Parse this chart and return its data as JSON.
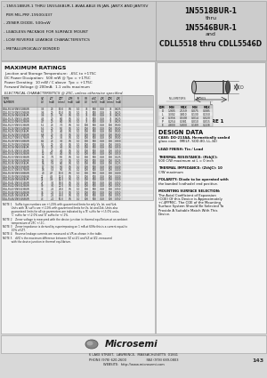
{
  "bg_color": "#d8d8d8",
  "header_bg": "#cccccc",
  "content_bg": "#f0f0f0",
  "title_right_lines": [
    "1N5518BUR-1",
    "thru",
    "1N5546BUR-1",
    "and",
    "CDLL5518 thru CDLL5546D"
  ],
  "bullet_lines": [
    "- 1N5518BUR-1 THRU 1N5546BUR-1 AVAILABLE IN JAN, JANTX AND JANTXV",
    "  PER MIL-PRF-19500/437",
    "- ZENER DIODE, 500mW",
    "- LEADLESS PACKAGE FOR SURFACE MOUNT",
    "- LOW REVERSE LEAKAGE CHARACTERISTICS",
    "- METALLURGICALLY BONDED"
  ],
  "max_ratings_title": "MAXIMUM RATINGS",
  "max_ratings_lines": [
    "Junction and Storage Temperature:  -65C to +175C",
    "DC Power Dissipation:  500 mW @ Tpc = +175C",
    "Power Derating:  10 mW / C above  Tpc = +175C",
    "Forward Voltage @ 200mA:  1.1 volts maximum"
  ],
  "elec_char_title": "ELECTRICAL CHARACTERISTICS @ 25C, unless otherwise specified.",
  "figure_title": "FIGURE 1",
  "design_data_title": "DESIGN DATA",
  "design_data_lines": [
    "CASE: DO-213AA, Hermetically sealed",
    "glass case.  (MELF, SOD-80, LL-34)",
    "",
    "LEAD FINISH: Tin / Lead",
    "",
    "THERMAL RESISTANCE: (RthJC):",
    "500 C/W maximum at L = 0 inch",
    "",
    "THERMAL IMPEDANCE: (ZthJC): 10",
    "C/W maximum",
    "",
    "POLARITY: Diode to be operated with",
    "the banded (cathode) end positive.",
    "",
    "MOUNTING SURFACE SELECTION:",
    "The Axial Coefficient of Expansion",
    "(COE) Of this Device is Approximately",
    "+/-4PPM/C. The COE of the Mounting",
    "Surface System Should Be Selected To",
    "Provide A Suitable Match With This",
    "Device."
  ],
  "notes": [
    "NOTE 1    Suffix type numbers are +/-20% with guaranteed limits for only Vz, Izt, and Vzk.",
    "           Units with 'A' suffix are +/-10% with guaranteed limits for Vz, Izt and Zzk. Units also",
    "           guaranteed limits for all six parameters are indicated by a 'B' suffix for +/-5.0% units,",
    "           'C' suffix for +/-2.0% and 'D' suffix for +/-1%.",
    "NOTE 2    Zener voltage is measured with the device junction in thermal equilibrium at an ambient",
    "           temperature of 25C +/-1C.",
    "NOTE 3    Zener impedance is derived by superimposing on 1 mA at 60Hz this is a current equal to",
    "           10% of IZT.",
    "NOTE 4    Reverse leakage currents are measured at VR as shown in the table.",
    "NOTE 5    dVZ is the maximum difference between VZ at IZ1 and VZ at IZ2, measured",
    "           with the device junction in thermal equilibrium."
  ],
  "footer_lines": [
    "6 LAKE STREET,  LAWRENCE,  MASSACHUSETTS  01841",
    "PHONE (978) 620-2600                    FAX (978) 689-0803",
    "WEBSITE:  http://www.microsemi.com"
  ],
  "page_number": "143",
  "table_rows": [
    [
      "CDLL5518/1N5518BUR",
      "3.3",
      "20",
      "10.0",
      "0.5",
      "1.0",
      "75",
      "500",
      "0.18",
      "75",
      "0.625"
    ],
    [
      "CDLL5519/1N5519BUR",
      "3.6",
      "20",
      "10.0",
      "0.5",
      "1.0",
      "75",
      "500",
      "0.18",
      "75",
      "0.625"
    ],
    [
      "CDLL5520/1N5520BUR",
      "3.9",
      "20",
      "9.0",
      "0.5",
      "1.0",
      "75",
      "500",
      "0.18",
      "75",
      "0.625"
    ],
    [
      "CDLL5521/1N5521BUR",
      "4.3",
      "20",
      "8.0",
      "0.5",
      "1.0",
      "75",
      "500",
      "0.18",
      "75",
      "0.625"
    ],
    [
      "CDLL5522/1N5522BUR",
      "4.7",
      "20",
      "8.0",
      "0.5",
      "1.0",
      "75",
      "500",
      "0.18",
      "75",
      "0.625"
    ],
    [
      "CDLL5523/1N5523BUR",
      "5.1",
      "20",
      "7.0",
      "0.5",
      "1.0",
      "100",
      "500",
      "0.18",
      "100",
      "0.500"
    ],
    [
      "CDLL5524/1N5524BUR",
      "5.6",
      "20",
      "5.0",
      "0.5",
      "1.0",
      "100",
      "500",
      "0.18",
      "100",
      "0.500"
    ],
    [
      "CDLL5525/1N5525BUR",
      "6.2",
      "20",
      "4.0",
      "0.5",
      "1.0",
      "100",
      "500",
      "0.18",
      "100",
      "0.500"
    ],
    [
      "CDLL5526/1N5526BUR",
      "6.8",
      "20",
      "3.5",
      "0.5",
      "1.0",
      "100",
      "500",
      "0.18",
      "100",
      "0.500"
    ],
    [
      "CDLL5527/1N5527BUR",
      "7.5",
      "20",
      "3.5",
      "0.5",
      "1.0",
      "100",
      "500",
      "0.18",
      "100",
      "0.500"
    ],
    [
      "CDLL5528/1N5528BUR",
      "8.2",
      "20",
      "3.0",
      "0.5",
      "1.0",
      "100",
      "500",
      "0.18",
      "100",
      "0.300"
    ],
    [
      "CDLL5529/1N5529BUR",
      "9.1",
      "20",
      "3.0",
      "0.5",
      "1.0",
      "100",
      "500",
      "0.18",
      "100",
      "0.300"
    ],
    [
      "CDLL5530/1N5530BUR",
      "10",
      "20",
      "3.0",
      "0.5",
      "1.0",
      "100",
      "500",
      "0.18",
      "100",
      "0.250"
    ],
    [
      "CDLL5531/1N5531BUR",
      "11",
      "20",
      "4.0",
      "0.5",
      "1.0",
      "100",
      "500",
      "0.18",
      "100",
      "0.250"
    ],
    [
      "CDLL5532/1N5532BUR",
      "12",
      "9.5",
      "4.0",
      "0.5",
      "1.0",
      "100",
      "500",
      "0.18",
      "100",
      "0.250"
    ],
    [
      "CDLL5533/1N5533BUR",
      "13",
      "7.5",
      "5.0",
      "0.5",
      "1.0",
      "100",
      "500",
      "0.18",
      "100",
      "0.125"
    ],
    [
      "CDLL5534/1N5534BUR",
      "15",
      "6.5",
      "7.0",
      "0.5",
      "1.0",
      "100",
      "500",
      "0.18",
      "100",
      "0.125"
    ],
    [
      "CDLL5535/1N5535BUR",
      "16",
      "5.9",
      "8.0",
      "0.5",
      "1.0",
      "100",
      "500",
      "0.18",
      "100",
      "0.125"
    ],
    [
      "CDLL5536/1N5536BUR",
      "17",
      "5.6",
      "9.0",
      "0.5",
      "1.0",
      "100",
      "500",
      "0.18",
      "100",
      "0.100"
    ],
    [
      "CDLL5537/1N5537BUR",
      "18",
      "5.3",
      "9.0",
      "0.5",
      "1.0",
      "100",
      "500",
      "0.18",
      "100",
      "0.100"
    ],
    [
      "CDLL5538/1N5538BUR",
      "20",
      "4.7",
      "10.0",
      "0.5",
      "1.0",
      "100",
      "500",
      "0.18",
      "100",
      "0.100"
    ],
    [
      "CDLL5539/1N5539BUR",
      "22",
      "4.3",
      "12.0",
      "0.5",
      "1.0",
      "100",
      "500",
      "0.18",
      "100",
      "0.100"
    ],
    [
      "CDLL5540/1N5540BUR",
      "24",
      "3.9",
      "14.0",
      "0.5",
      "1.0",
      "100",
      "500",
      "0.18",
      "100",
      "0.100"
    ],
    [
      "CDLL5541/1N5541BUR",
      "27",
      "3.5",
      "18.0",
      "0.5",
      "1.0",
      "100",
      "500",
      "0.18",
      "100",
      "0.050"
    ],
    [
      "CDLL5542/1N5542BUR",
      "30",
      "3.0",
      "22.0",
      "0.5",
      "1.0",
      "100",
      "500",
      "0.18",
      "100",
      "0.050"
    ],
    [
      "CDLL5543/1N5543BUR",
      "33",
      "2.5",
      "28.0",
      "0.5",
      "1.0",
      "100",
      "500",
      "0.18",
      "100",
      "0.050"
    ],
    [
      "CDLL5544/1N5544BUR",
      "36",
      "2.5",
      "35.0",
      "0.5",
      "1.0",
      "100",
      "500",
      "0.18",
      "100",
      "0.050"
    ],
    [
      "CDLL5545/1N5545BUR",
      "39",
      "2.5",
      "40.0",
      "0.5",
      "1.0",
      "100",
      "500",
      "0.18",
      "100",
      "0.050"
    ],
    [
      "CDLL5546/1N5546BUR",
      "43",
      "2.0",
      "50.0",
      "0.5",
      "1.0",
      "100",
      "500",
      "0.18",
      "100",
      "0.050"
    ]
  ],
  "dim_table_rows": [
    [
      "D",
      "1.905",
      "2.159",
      "0.075",
      "0.085"
    ],
    [
      "L",
      "3.302",
      "3.810",
      "0.130",
      "0.150"
    ],
    [
      "d",
      "0.356",
      "0.508",
      "0.014",
      "0.020"
    ],
    [
      "P",
      "0.254",
      "0.381",
      "0.010",
      "0.015"
    ],
    [
      "E",
      "4.800",
      "5.800",
      "0.189",
      "0.228"
    ]
  ]
}
